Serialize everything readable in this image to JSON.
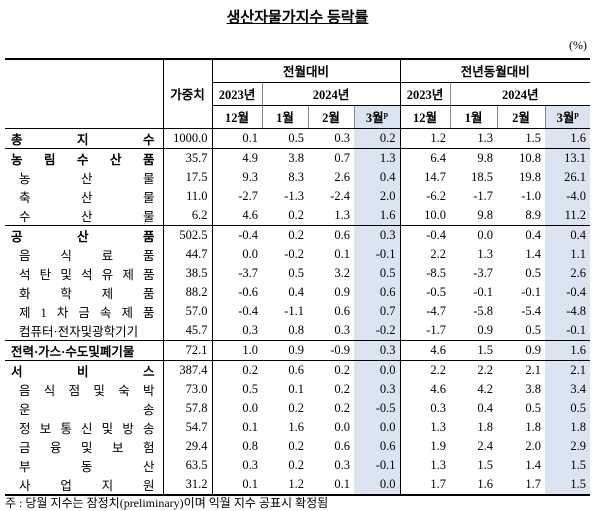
{
  "title": "생산자물가지수 등락률",
  "unit": "(%)",
  "header": {
    "weight": "가중치",
    "groups": [
      {
        "title": "전월대비",
        "years": [
          "2023년",
          "2024년"
        ],
        "months": [
          "12월",
          "1월",
          "2월",
          "3월"
        ],
        "prelim": "p"
      },
      {
        "title": "전년동월대비",
        "years": [
          "2023년",
          "2024년"
        ],
        "months": [
          "12월",
          "1월",
          "2월",
          "3월"
        ],
        "prelim": "p"
      }
    ]
  },
  "table": {
    "total": {
      "name": "총 지 수",
      "cells": [
        "1000.0",
        "0.1",
        "0.5",
        "0.3",
        "0.2",
        "1.2",
        "1.3",
        "1.5",
        "1.6"
      ]
    },
    "groups": [
      {
        "name": "농 림 수 산 품",
        "cells": [
          "35.7",
          "4.9",
          "3.8",
          "0.7",
          "1.3",
          "6.4",
          "9.8",
          "10.8",
          "13.1"
        ],
        "items": [
          {
            "name": "농 산 물",
            "cells": [
              "17.5",
              "9.3",
              "8.3",
              "2.6",
              "0.4",
              "14.7",
              "18.5",
              "19.8",
              "26.1"
            ]
          },
          {
            "name": "축 산 물",
            "cells": [
              "11.0",
              "-2.7",
              "-1.3",
              "-2.4",
              "2.0",
              "-6.2",
              "-1.7",
              "-1.0",
              "-4.0"
            ]
          },
          {
            "name": "수 산 물",
            "cells": [
              "6.2",
              "4.6",
              "0.2",
              "1.3",
              "1.6",
              "10.0",
              "9.8",
              "8.9",
              "11.2"
            ]
          }
        ]
      },
      {
        "name": "공 산 품",
        "cells": [
          "502.5",
          "-0.4",
          "0.2",
          "0.6",
          "0.3",
          "-0.4",
          "0.0",
          "0.4",
          "0.4"
        ],
        "items": [
          {
            "name": "음 식 료 품",
            "cells": [
              "44.7",
              "0.0",
              "-0.2",
              "0.1",
              "-0.1",
              "2.2",
              "1.3",
              "1.4",
              "1.1"
            ]
          },
          {
            "name": "석 탄 및 석 유 제 품",
            "cells": [
              "38.5",
              "-3.7",
              "0.5",
              "3.2",
              "0.5",
              "-8.5",
              "-3.7",
              "0.5",
              "2.6"
            ]
          },
          {
            "name": "화 학 제 품",
            "cells": [
              "88.2",
              "-0.6",
              "0.4",
              "0.9",
              "0.6",
              "-0.5",
              "-0.1",
              "-0.1",
              "-0.4"
            ]
          },
          {
            "name": "제 1 차 금 속 제 품",
            "cells": [
              "57.0",
              "-0.4",
              "-1.1",
              "0.6",
              "0.7",
              "-4.7",
              "-5.8",
              "-5.4",
              "-4.8"
            ]
          },
          {
            "name": "컴퓨터·전자및광학기기",
            "cells": [
              "45.7",
              "0.3",
              "0.8",
              "0.3",
              "-0.2",
              "-1.7",
              "0.9",
              "0.5",
              "-0.1"
            ]
          }
        ]
      },
      {
        "name": "전력·가스·수도및폐기물",
        "cells": [
          "72.1",
          "1.0",
          "0.9",
          "-0.9",
          "0.3",
          "4.6",
          "1.5",
          "0.9",
          "1.6"
        ],
        "items": []
      },
      {
        "name": "서 비 스",
        "cells": [
          "387.4",
          "0.2",
          "0.6",
          "0.2",
          "0.0",
          "2.2",
          "2.2",
          "2.1",
          "2.1"
        ],
        "items": [
          {
            "name": "음 식 점 및 숙 박",
            "cells": [
              "73.0",
              "0.5",
              "0.1",
              "0.2",
              "0.3",
              "4.6",
              "4.2",
              "3.8",
              "3.4"
            ]
          },
          {
            "name": "운 송",
            "cells": [
              "57.8",
              "0.0",
              "0.2",
              "0.2",
              "-0.5",
              "0.3",
              "0.4",
              "0.5",
              "0.5"
            ]
          },
          {
            "name": "정 보 통 신 및 방 송",
            "cells": [
              "54.7",
              "0.1",
              "1.6",
              "0.0",
              "0.0",
              "1.3",
              "1.8",
              "1.8",
              "1.8"
            ]
          },
          {
            "name": "금 융 및 보 험",
            "cells": [
              "29.4",
              "0.8",
              "0.2",
              "0.6",
              "0.6",
              "1.9",
              "2.4",
              "2.0",
              "2.9"
            ]
          },
          {
            "name": "부 동 산",
            "cells": [
              "63.5",
              "0.3",
              "0.2",
              "0.3",
              "-0.1",
              "1.3",
              "1.5",
              "1.4",
              "1.5"
            ]
          },
          {
            "name": "사 업 지 원",
            "cells": [
              "31.2",
              "0.1",
              "1.2",
              "0.1",
              "0.0",
              "1.7",
              "1.6",
              "1.7",
              "1.5"
            ]
          }
        ]
      }
    ]
  },
  "footnote": "주 : 당월 지수는 잠정치(preliminary)이며 익월 지수 공표시 확정됨"
}
